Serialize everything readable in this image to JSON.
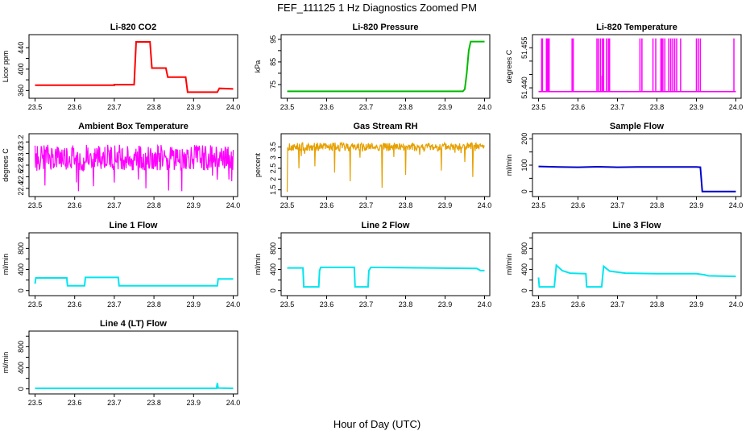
{
  "figure": {
    "title": "FEF_111125  1 Hz Diagnostics Zoomed PM",
    "xlabel": "Hour of Day (UTC)"
  },
  "chart_data": [
    {
      "type": "line",
      "title": "Li-820 CO2",
      "ylabel": "Licor ppm",
      "color": "#ff0000",
      "xlim": [
        23.5,
        24.0
      ],
      "ylim": [
        350,
        460
      ],
      "xticks": [
        "23.5",
        "23.6",
        "23.7",
        "23.8",
        "23.9",
        "24.0"
      ],
      "yticks": [
        360,
        380,
        400,
        420,
        440
      ],
      "yticklabels": [
        "360",
        "",
        "400",
        "",
        "440"
      ],
      "series": [
        {
          "x": [
            23.5,
            23.7,
            23.7,
            23.75,
            23.755,
            23.79,
            23.795,
            23.83,
            23.835,
            23.88,
            23.885,
            23.96,
            23.965,
            24.0
          ],
          "y": [
            370,
            370,
            371,
            371,
            451,
            451,
            402,
            402,
            385,
            385,
            357,
            357,
            364,
            363
          ]
        }
      ]
    },
    {
      "type": "line",
      "title": "Li-820 Pressure",
      "ylabel": "kPa",
      "color": "#00bb00",
      "xlim": [
        23.5,
        24.0
      ],
      "ylim": [
        70,
        96
      ],
      "xticks": [
        "23.5",
        "23.6",
        "23.7",
        "23.8",
        "23.9",
        "24.0"
      ],
      "yticks": [
        75,
        80,
        85,
        90,
        95
      ],
      "yticklabels": [
        "75",
        "",
        "85",
        "",
        "95"
      ],
      "series": [
        {
          "x": [
            23.5,
            23.92,
            23.93,
            23.945,
            23.95,
            23.955,
            23.96,
            23.965,
            24.0
          ],
          "y": [
            72,
            72,
            72,
            72,
            73,
            80,
            90,
            94,
            94
          ]
        }
      ]
    },
    {
      "type": "line",
      "title": "Li-820 Temperature",
      "ylabel": "degrees C",
      "color": "#ff00ff",
      "xlim": [
        23.5,
        24.0
      ],
      "ylim": [
        51.437,
        51.459
      ],
      "xticks": [
        "23.5",
        "23.6",
        "23.7",
        "23.8",
        "23.9",
        "24.0"
      ],
      "yticks": [
        51.44,
        51.445,
        51.45,
        51.455
      ],
      "yticklabels": [
        "51.440",
        "",
        "",
        "51.455"
      ],
      "baseline": 51.4386,
      "spike_top": 51.4585,
      "spikes_x": [
        23.508,
        23.51,
        23.52,
        23.522,
        23.525,
        23.527,
        23.585,
        23.588,
        23.648,
        23.652,
        23.657,
        23.662,
        23.665,
        23.672,
        23.677,
        23.68,
        23.757,
        23.762,
        23.79,
        23.797,
        23.81,
        23.812,
        23.815,
        23.82,
        23.83,
        23.835,
        23.84,
        23.845,
        23.85,
        23.86,
        23.9,
        23.905,
        23.91,
        23.995
      ],
      "mid_spike": {
        "x": 23.662,
        "y": 51.4445
      }
    },
    {
      "type": "line",
      "title": "Ambient Box Temperature",
      "ylabel": "degrees C",
      "color": "#ff00ff",
      "xlim": [
        23.5,
        24.0
      ],
      "ylim": [
        22.3,
        23.3
      ],
      "xticks": [
        "23.5",
        "23.6",
        "23.7",
        "23.8",
        "23.9",
        "24.0"
      ],
      "yticks": [
        22.4,
        22.6,
        22.8,
        23.0,
        23.2
      ],
      "yticklabels": [
        "22.4",
        "22.6",
        "22.8",
        "23.0",
        "23.2"
      ],
      "noise": {
        "low": 22.7,
        "high": 23.15,
        "dips": [
          22.45,
          22.35,
          22.5,
          22.4,
          22.35,
          22.55
        ],
        "dip_x": [
          23.525,
          23.61,
          23.7,
          23.78,
          23.87,
          23.96
        ]
      }
    },
    {
      "type": "line",
      "title": "Gas Stream RH",
      "ylabel": "percent",
      "color": "#e6a000",
      "xlim": [
        23.5,
        24.0
      ],
      "ylim": [
        1.3,
        4.0
      ],
      "xticks": [
        "23.5",
        "23.6",
        "23.7",
        "23.8",
        "23.9",
        "24.0"
      ],
      "yticks": [
        1.5,
        2.0,
        2.5,
        3.0,
        3.5
      ],
      "yticklabels": [
        "1.5",
        "2",
        "2.5",
        "3",
        "3.5"
      ],
      "noise": {
        "low": 3.3,
        "high": 3.7,
        "dips": [
          1.4,
          2.5,
          2.6,
          2.3,
          1.9,
          1.6,
          2.2,
          2.4,
          2.8,
          2.1
        ],
        "dip_x": [
          23.5,
          23.53,
          23.57,
          23.62,
          23.66,
          23.74,
          23.8,
          23.89,
          23.95,
          23.97
        ]
      }
    },
    {
      "type": "line",
      "title": "Sample Flow",
      "ylabel": "ml/min",
      "color": "#0000cc",
      "xlim": [
        23.5,
        24.0
      ],
      "ylim": [
        -10,
        210
      ],
      "xticks": [
        "23.5",
        "23.6",
        "23.7",
        "23.8",
        "23.9",
        "24.0"
      ],
      "yticks": [
        0,
        50,
        100,
        150,
        200
      ],
      "yticklabels": [
        "0",
        "",
        "100",
        "",
        "200"
      ],
      "series": [
        {
          "x": [
            23.5,
            23.55,
            23.6,
            23.65,
            23.7,
            23.75,
            23.8,
            23.85,
            23.9,
            23.91,
            23.915,
            23.93,
            24.0
          ],
          "y": [
            95,
            93,
            92,
            94,
            92,
            93,
            93,
            93,
            93,
            92,
            0,
            0,
            0
          ]
        }
      ]
    },
    {
      "type": "line",
      "title": "Line 1 Flow",
      "ylabel": "ml/min",
      "color": "#00e5ee",
      "xlim": [
        23.5,
        24.0
      ],
      "ylim": [
        -50,
        1050
      ],
      "xticks": [
        "23.5",
        "23.6",
        "23.7",
        "23.8",
        "23.9",
        "24.0"
      ],
      "yticks": [
        0,
        200,
        400,
        600,
        800,
        1000
      ],
      "yticklabels": [
        "0",
        "",
        "400",
        "",
        "800",
        ""
      ],
      "series": [
        {
          "x": [
            23.5,
            23.502,
            23.58,
            23.582,
            23.625,
            23.627,
            23.71,
            23.712,
            23.96,
            23.962,
            24.0
          ],
          "y": [
            130,
            240,
            240,
            90,
            90,
            250,
            250,
            90,
            90,
            220,
            220
          ]
        }
      ]
    },
    {
      "type": "line",
      "title": "Line 2 Flow",
      "ylabel": "ml/min",
      "color": "#00e5ee",
      "xlim": [
        23.5,
        24.0
      ],
      "ylim": [
        -50,
        1050
      ],
      "xticks": [
        "23.5",
        "23.6",
        "23.7",
        "23.8",
        "23.9",
        "24.0"
      ],
      "yticks": [
        0,
        200,
        400,
        600,
        800,
        1000
      ],
      "yticklabels": [
        "0",
        "",
        "400",
        "",
        "800",
        ""
      ],
      "series": [
        {
          "x": [
            23.5,
            23.54,
            23.542,
            23.58,
            23.582,
            23.585,
            23.67,
            23.672,
            23.705,
            23.707,
            23.712,
            23.98,
            23.99,
            24.0
          ],
          "y": [
            430,
            430,
            70,
            70,
            380,
            440,
            440,
            70,
            70,
            380,
            440,
            420,
            380,
            380
          ]
        }
      ]
    },
    {
      "type": "line",
      "title": "Line 3 Flow",
      "ylabel": "ml/min",
      "color": "#00e5ee",
      "xlim": [
        23.5,
        24.0
      ],
      "ylim": [
        -50,
        1050
      ],
      "xticks": [
        "23.5",
        "23.6",
        "23.7",
        "23.8",
        "23.9",
        "24.0"
      ],
      "yticks": [
        0,
        200,
        400,
        600,
        800,
        1000
      ],
      "yticklabels": [
        "0",
        "",
        "400",
        "",
        "800",
        ""
      ],
      "series": [
        {
          "x": [
            23.5,
            23.502,
            23.504,
            23.54,
            23.545,
            23.56,
            23.58,
            23.62,
            23.622,
            23.66,
            23.665,
            23.68,
            23.72,
            23.8,
            23.9,
            23.92,
            23.93,
            24.0
          ],
          "y": [
            250,
            70,
            70,
            70,
            480,
            380,
            330,
            320,
            70,
            70,
            460,
            370,
            330,
            320,
            320,
            300,
            280,
            270
          ]
        }
      ]
    },
    {
      "type": "line",
      "title": "Line 4 (LT) Flow",
      "ylabel": "ml/min",
      "color": "#00e5ee",
      "xlim": [
        23.5,
        24.0
      ],
      "ylim": [
        -50,
        1050
      ],
      "xticks": [
        "23.5",
        "23.6",
        "23.7",
        "23.8",
        "23.9",
        "24.0"
      ],
      "yticks": [
        0,
        200,
        400,
        600,
        800,
        1000
      ],
      "yticklabels": [
        "0",
        "",
        "400",
        "",
        "800",
        ""
      ],
      "series": [
        {
          "x": [
            23.5,
            23.958,
            23.96,
            23.962,
            24.0
          ],
          "y": [
            10,
            10,
            110,
            15,
            10
          ]
        }
      ]
    }
  ]
}
